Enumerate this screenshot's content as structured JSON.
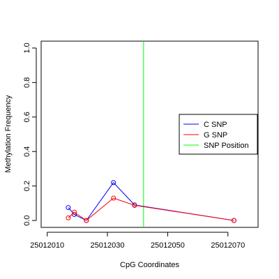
{
  "chart_data": {
    "type": "line",
    "xlabel": "CpG Coordinates",
    "ylabel": "Methylation Frequency",
    "xlim": [
      25012008,
      25012080
    ],
    "ylim": [
      -0.04,
      1.04
    ],
    "x_ticks": [
      25012010,
      25012030,
      25012050,
      25012070
    ],
    "x_tick_labels": [
      "25012010",
      "25012030",
      "25012050",
      "25012070"
    ],
    "y_ticks": [
      0.0,
      0.2,
      0.4,
      0.6,
      0.8,
      1.0
    ],
    "y_tick_labels": [
      "0.0",
      "0.2",
      "0.4",
      "0.6",
      "0.8",
      "1.0"
    ],
    "grid": false,
    "series": [
      {
        "name": "C SNP",
        "color": "#0000ff",
        "points": [
          {
            "x": 25012017,
            "y": 0.075,
            "connected": false
          },
          {
            "x": 25012019,
            "y": 0.035,
            "connected": true
          },
          {
            "x": 25012023,
            "y": 0.0,
            "connected": true
          },
          {
            "x": 25012032,
            "y": 0.22,
            "connected": true
          },
          {
            "x": 25012039,
            "y": 0.09,
            "connected": true
          },
          {
            "x": 25012072,
            "y": 0.0,
            "connected": true
          }
        ]
      },
      {
        "name": "G SNP",
        "color": "#ff0000",
        "points": [
          {
            "x": 25012017,
            "y": 0.015,
            "connected": false
          },
          {
            "x": 25012019,
            "y": 0.048,
            "connected": true
          },
          {
            "x": 25012023,
            "y": 0.0,
            "connected": true
          },
          {
            "x": 25012032,
            "y": 0.13,
            "connected": true
          },
          {
            "x": 25012039,
            "y": 0.088,
            "connected": true
          },
          {
            "x": 25012072,
            "y": 0.0,
            "connected": true
          }
        ]
      }
    ],
    "snp_position": {
      "name": "SNP Position",
      "x": 25012042,
      "color": "#00ff00"
    },
    "legend": {
      "placement": "right",
      "entries": [
        {
          "label": "C SNP",
          "color": "#0000ff"
        },
        {
          "label": "G SNP",
          "color": "#ff0000"
        },
        {
          "label": "SNP Position",
          "color": "#00ff00"
        }
      ]
    }
  }
}
